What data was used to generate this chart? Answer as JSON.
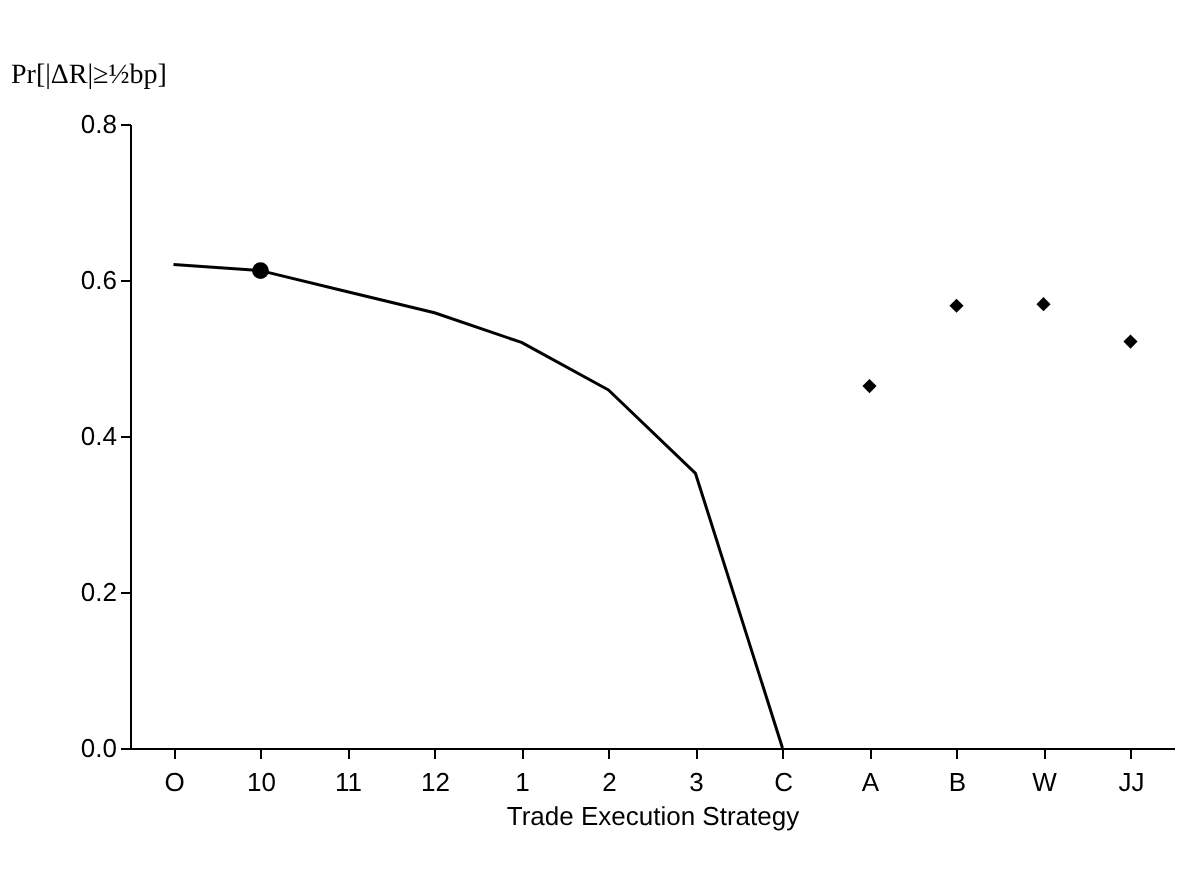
{
  "chart_data": {
    "type": "line",
    "ylabel": "Pr[|ΔR|≥½bp]",
    "xlabel": "Trade Execution Strategy",
    "categories": [
      "O",
      "10",
      "11",
      "12",
      "1",
      "2",
      "3",
      "C",
      "A",
      "B",
      "W",
      "JJ"
    ],
    "series": [
      {
        "color": "#000000",
        "marker": "none",
        "line_style": "solid",
        "values": [
          0.62,
          0.612,
          0.585,
          0.558,
          0.52,
          0.459,
          0.352,
          0.0,
          null,
          null,
          null,
          null
        ]
      },
      {
        "type": "scatter",
        "color": "#000000",
        "marker": "circle",
        "values": [
          null,
          0.612,
          null,
          null,
          null,
          null,
          null,
          null,
          null,
          null,
          null,
          null
        ]
      },
      {
        "type": "scatter",
        "color": "#000000",
        "marker": "diamond",
        "values": [
          null,
          null,
          null,
          null,
          null,
          null,
          null,
          null,
          0.464,
          0.567,
          0.569,
          0.521
        ]
      }
    ],
    "ylim": [
      0,
      0.8
    ],
    "yticks": [
      {
        "value": 0,
        "label": "0.0"
      },
      {
        "value": 0.2,
        "label": "0.2"
      },
      {
        "value": 0.4,
        "label": "0.4"
      },
      {
        "value": 0.6,
        "label": "0.6"
      },
      {
        "value": 0.8,
        "label": "0.8"
      }
    ],
    "grid": false
  }
}
